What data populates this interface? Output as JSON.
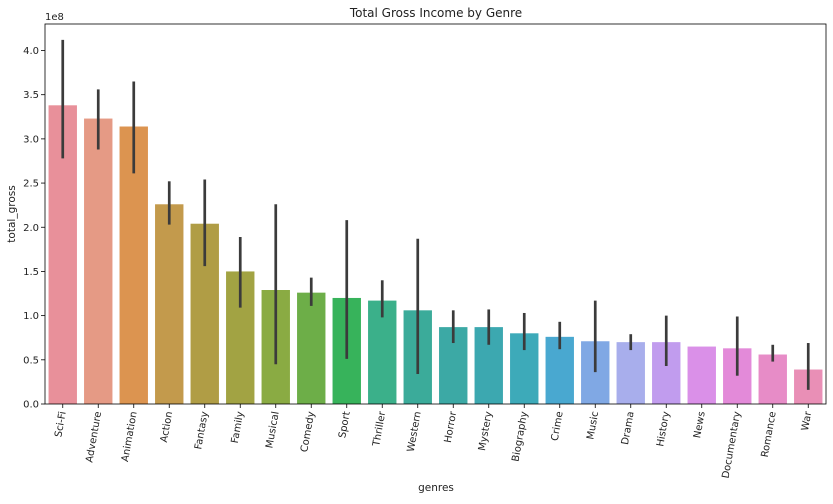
{
  "chart_data": {
    "type": "bar",
    "title": "Total Gross Income by Genre",
    "xlabel": "genres",
    "ylabel": "total_gross",
    "y_scale_label": "1e8",
    "y_scale": 100000000,
    "ylim": [
      0,
      4.3
    ],
    "yticks": [
      "0.0",
      "0.5",
      "1.0",
      "1.5",
      "2.0",
      "2.5",
      "3.0",
      "3.5",
      "4.0"
    ],
    "ytick_values": [
      0.0,
      0.5,
      1.0,
      1.5,
      2.0,
      2.5,
      3.0,
      3.5,
      4.0
    ],
    "grid": false,
    "error_bars": true,
    "categories": [
      "Sci-Fi",
      "Adventure",
      "Animation",
      "Action",
      "Fantasy",
      "Family",
      "Musical",
      "Comedy",
      "Sport",
      "Thriller",
      "Western",
      "Horror",
      "Mystery",
      "Biography",
      "Crime",
      "Music",
      "Drama",
      "History",
      "News",
      "Documentary",
      "Romance",
      "War"
    ],
    "values": [
      3.38,
      3.23,
      3.14,
      2.26,
      2.04,
      1.5,
      1.29,
      1.26,
      1.2,
      1.17,
      1.06,
      0.87,
      0.87,
      0.8,
      0.76,
      0.71,
      0.7,
      0.7,
      0.65,
      0.63,
      0.56,
      0.39
    ],
    "error_low": [
      2.78,
      2.88,
      2.61,
      2.03,
      1.56,
      1.09,
      0.45,
      1.11,
      0.51,
      0.98,
      0.34,
      0.69,
      0.67,
      0.61,
      0.62,
      0.36,
      0.61,
      0.43,
      null,
      0.32,
      0.48,
      0.16
    ],
    "error_high": [
      4.12,
      3.56,
      3.65,
      2.52,
      2.54,
      1.89,
      2.26,
      1.43,
      2.08,
      1.4,
      1.87,
      1.06,
      1.07,
      1.03,
      0.93,
      1.17,
      0.79,
      1.0,
      null,
      0.99,
      0.67,
      0.69
    ],
    "colors": [
      "#e8909a",
      "#e59a85",
      "#dc9450",
      "#c39a4c",
      "#b09d45",
      "#a2a343",
      "#8aab43",
      "#6dae48",
      "#37b35b",
      "#3bb08a",
      "#3bab9a",
      "#3ca9a5",
      "#3ca8b0",
      "#3daab9",
      "#49a8d0",
      "#80a8e4",
      "#a8aeec",
      "#c19cee",
      "#da90e8",
      "#e38ad9",
      "#e78cc7",
      "#e98fb6"
    ],
    "error_color": "#3b3b3b"
  }
}
